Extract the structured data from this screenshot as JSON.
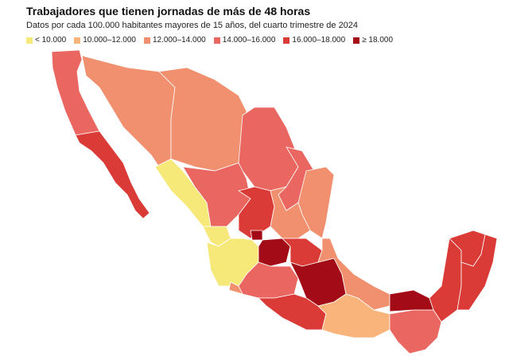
{
  "header": {
    "title": "Trabajadores que tienen jornadas de más de 48 horas",
    "subtitle": "Datos por cada 100.000 habitantes mayores de 15 años, del cuarto trimestre de 2024"
  },
  "legend": {
    "items": [
      {
        "label": "< 10.000",
        "color": "#f6e879"
      },
      {
        "label": "10.000–12.000",
        "color": "#f8b47a"
      },
      {
        "label": "12.000–14.000",
        "color": "#f0906e"
      },
      {
        "label": "14.000–16.000",
        "color": "#ea6660"
      },
      {
        "label": "16.000–18.000",
        "color": "#db3b36"
      },
      {
        "label": "≥ 18.000",
        "color": "#a30c16"
      }
    ]
  }
}
